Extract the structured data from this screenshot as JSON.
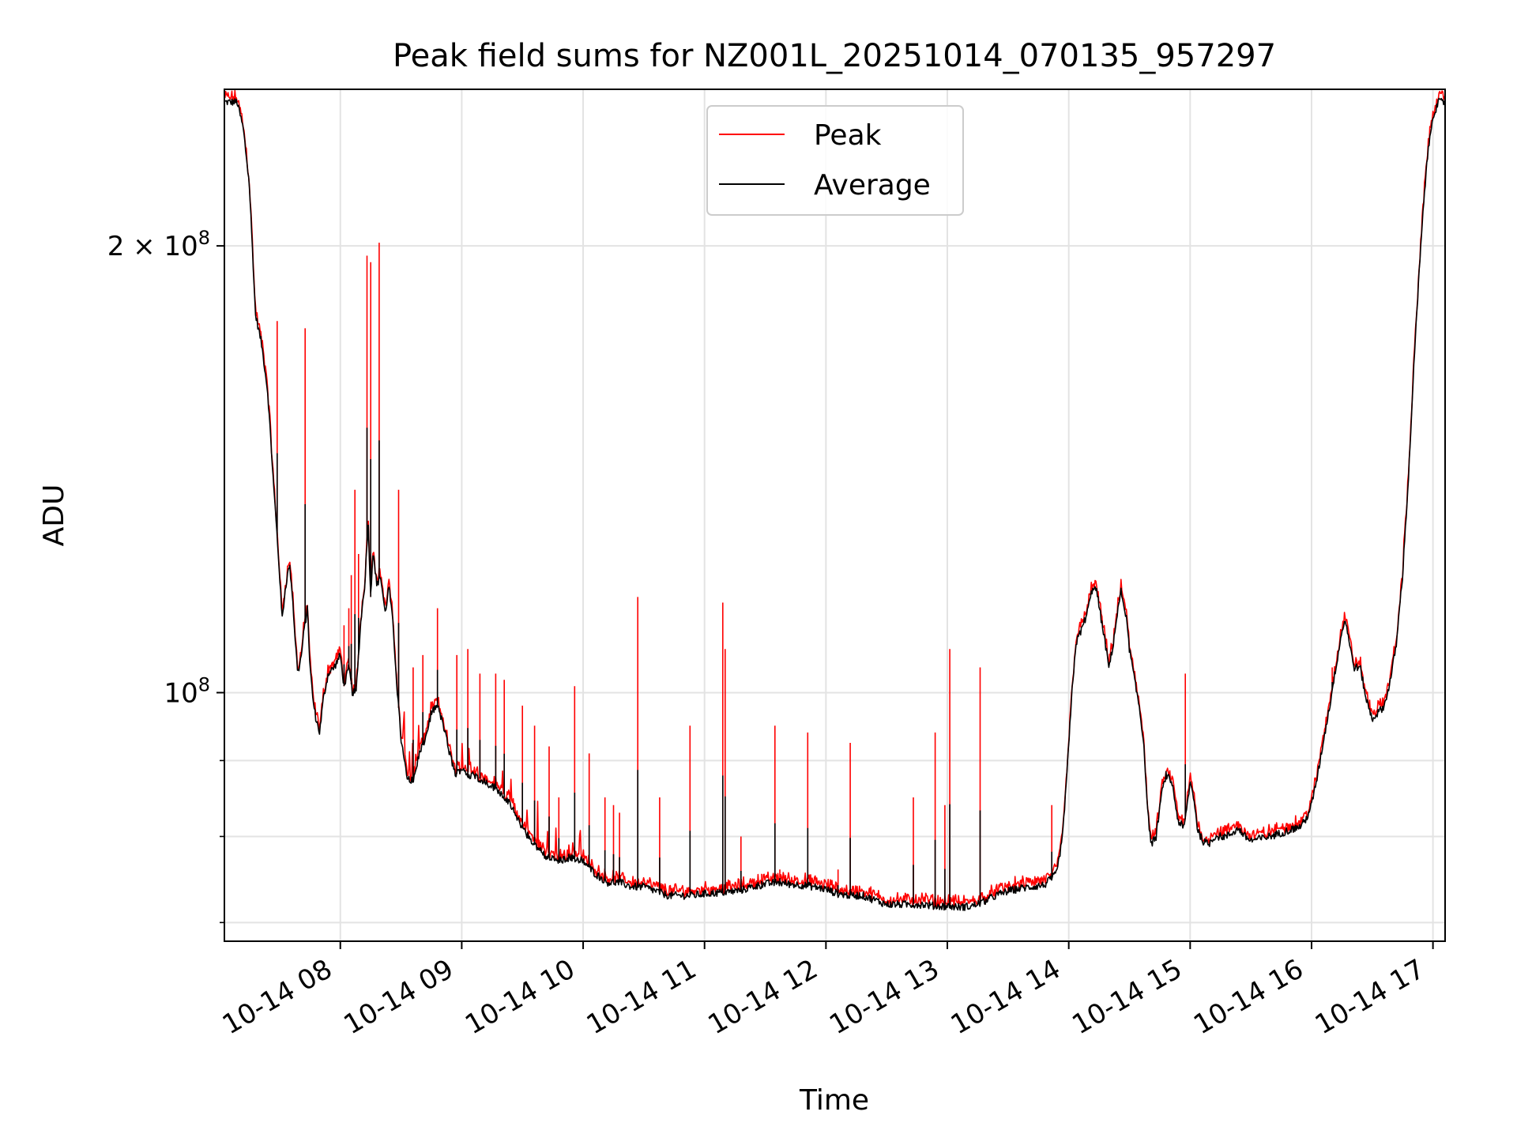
{
  "chart_data": {
    "type": "line",
    "title": "Peak field sums for NZ001L_20251014_070135_957297",
    "xlabel": "Time",
    "ylabel": "ADU",
    "xlim": [
      7.045,
      17.1
    ],
    "ylim": [
      68000000,
      255000000
    ],
    "yscale": "log",
    "grid": true,
    "legend_position": "top-center",
    "x_ticks": [
      {
        "value": 8,
        "label": "10-14 08"
      },
      {
        "value": 9,
        "label": "10-14 09"
      },
      {
        "value": 10,
        "label": "10-14 10"
      },
      {
        "value": 11,
        "label": "10-14 11"
      },
      {
        "value": 12,
        "label": "10-14 12"
      },
      {
        "value": 13,
        "label": "10-14 13"
      },
      {
        "value": 14,
        "label": "10-14 14"
      },
      {
        "value": 15,
        "label": "10-14 15"
      },
      {
        "value": 16,
        "label": "10-14 16"
      },
      {
        "value": 17,
        "label": "10-14 17"
      }
    ],
    "y_major_ticks": [
      {
        "value": 100000000,
        "mantissa": "",
        "base": "10",
        "exp": "8"
      },
      {
        "value": 200000000,
        "mantissa": "2 × ",
        "base": "10",
        "exp": "8"
      }
    ],
    "y_minor_ticks": [
      70000000,
      80000000,
      90000000,
      300000000
    ],
    "series": [
      {
        "name": "Average",
        "color": "#000000",
        "points": [
          [
            7.05,
            250
          ],
          [
            7.15,
            250
          ],
          [
            7.2,
            240
          ],
          [
            7.25,
            220
          ],
          [
            7.3,
            180
          ],
          [
            7.35,
            172
          ],
          [
            7.4,
            160
          ],
          [
            7.45,
            138
          ],
          [
            7.5,
            120
          ],
          [
            7.52,
            112
          ],
          [
            7.55,
            118
          ],
          [
            7.58,
            122
          ],
          [
            7.6,
            118
          ],
          [
            7.63,
            108
          ],
          [
            7.65,
            103
          ],
          [
            7.68,
            106
          ],
          [
            7.7,
            110
          ],
          [
            7.73,
            114
          ],
          [
            7.75,
            104
          ],
          [
            7.78,
            98
          ],
          [
            7.8,
            96
          ],
          [
            7.83,
            94
          ],
          [
            7.86,
            99
          ],
          [
            7.9,
            103
          ],
          [
            7.95,
            104
          ],
          [
            8.0,
            106
          ],
          [
            8.03,
            101
          ],
          [
            8.07,
            104
          ],
          [
            8.1,
            100
          ],
          [
            8.13,
            100
          ],
          [
            8.17,
            112
          ],
          [
            8.2,
            118
          ],
          [
            8.23,
            130
          ],
          [
            8.25,
            116
          ],
          [
            8.27,
            125
          ],
          [
            8.3,
            118
          ],
          [
            8.33,
            120
          ],
          [
            8.37,
            113
          ],
          [
            8.4,
            118
          ],
          [
            8.43,
            112
          ],
          [
            8.47,
            100
          ],
          [
            8.5,
            93
          ],
          [
            8.55,
            88
          ],
          [
            8.6,
            87
          ],
          [
            8.65,
            91
          ],
          [
            8.7,
            93
          ],
          [
            8.75,
            97
          ],
          [
            8.8,
            98
          ],
          [
            8.85,
            95
          ],
          [
            8.9,
            91
          ],
          [
            8.95,
            88
          ],
          [
            9.0,
            89
          ],
          [
            9.05,
            88
          ],
          [
            9.1,
            88
          ],
          [
            9.2,
            87
          ],
          [
            9.3,
            86
          ],
          [
            9.4,
            84
          ],
          [
            9.5,
            81
          ],
          [
            9.6,
            79
          ],
          [
            9.7,
            77.5
          ],
          [
            9.8,
            77
          ],
          [
            9.9,
            77.5
          ],
          [
            10.0,
            77
          ],
          [
            10.1,
            75.5
          ],
          [
            10.2,
            74.5
          ],
          [
            10.3,
            74.5
          ],
          [
            10.4,
            74
          ],
          [
            10.5,
            74
          ],
          [
            10.6,
            73.5
          ],
          [
            10.7,
            73
          ],
          [
            10.8,
            73
          ],
          [
            10.9,
            73
          ],
          [
            11.0,
            73.2
          ],
          [
            11.1,
            73.3
          ],
          [
            11.2,
            73.4
          ],
          [
            11.3,
            73.6
          ],
          [
            11.4,
            74
          ],
          [
            11.5,
            74.3
          ],
          [
            11.6,
            74.5
          ],
          [
            11.7,
            74.3
          ],
          [
            11.8,
            74.2
          ],
          [
            11.9,
            74
          ],
          [
            12.0,
            73.7
          ],
          [
            12.1,
            73.2
          ],
          [
            12.2,
            73
          ],
          [
            12.3,
            73
          ],
          [
            12.4,
            72.5
          ],
          [
            12.5,
            72
          ],
          [
            12.6,
            72
          ],
          [
            12.7,
            72
          ],
          [
            12.8,
            72
          ],
          [
            12.9,
            71.8
          ],
          [
            13.0,
            71.8
          ],
          [
            13.1,
            71.7
          ],
          [
            13.2,
            71.8
          ],
          [
            13.3,
            72.3
          ],
          [
            13.4,
            73
          ],
          [
            13.5,
            73.5
          ],
          [
            13.6,
            73.8
          ],
          [
            13.7,
            74
          ],
          [
            13.8,
            74.2
          ],
          [
            13.9,
            75.5
          ],
          [
            13.95,
            80
          ],
          [
            14.0,
            92
          ],
          [
            14.03,
            101
          ],
          [
            14.06,
            108
          ],
          [
            14.1,
            110
          ],
          [
            14.15,
            113
          ],
          [
            14.2,
            118
          ],
          [
            14.23,
            117
          ],
          [
            14.26,
            113
          ],
          [
            14.3,
            108
          ],
          [
            14.33,
            104
          ],
          [
            14.36,
            107
          ],
          [
            14.4,
            113
          ],
          [
            14.43,
            117
          ],
          [
            14.47,
            113
          ],
          [
            14.5,
            107
          ],
          [
            14.55,
            101
          ],
          [
            14.58,
            98
          ],
          [
            14.62,
            92
          ],
          [
            14.65,
            83
          ],
          [
            14.68,
            79
          ],
          [
            14.72,
            80
          ],
          [
            14.76,
            85
          ],
          [
            14.8,
            88
          ],
          [
            14.85,
            87
          ],
          [
            14.9,
            82
          ],
          [
            14.95,
            81
          ],
          [
            15.0,
            87
          ],
          [
            15.03,
            85
          ],
          [
            15.06,
            81
          ],
          [
            15.1,
            79.5
          ],
          [
            15.15,
            79
          ],
          [
            15.2,
            80
          ],
          [
            15.25,
            80
          ],
          [
            15.3,
            80
          ],
          [
            15.35,
            80.5
          ],
          [
            15.4,
            81
          ],
          [
            15.45,
            80
          ],
          [
            15.5,
            79.5
          ],
          [
            15.6,
            79.8
          ],
          [
            15.7,
            80.2
          ],
          [
            15.8,
            80.7
          ],
          [
            15.9,
            81.2
          ],
          [
            15.95,
            82
          ],
          [
            16.0,
            84
          ],
          [
            16.05,
            88
          ],
          [
            16.1,
            93
          ],
          [
            16.15,
            98
          ],
          [
            16.2,
            104
          ],
          [
            16.25,
            110
          ],
          [
            16.28,
            112
          ],
          [
            16.32,
            107
          ],
          [
            16.35,
            104
          ],
          [
            16.4,
            104
          ],
          [
            16.45,
            99
          ],
          [
            16.5,
            96
          ],
          [
            16.55,
            97
          ],
          [
            16.6,
            98
          ],
          [
            16.65,
            102
          ],
          [
            16.7,
            108
          ],
          [
            16.75,
            120
          ],
          [
            16.8,
            140
          ],
          [
            16.85,
            170
          ],
          [
            16.9,
            200
          ],
          [
            16.95,
            228
          ],
          [
            17.0,
            245
          ],
          [
            17.05,
            250
          ],
          [
            17.1,
            250
          ]
        ]
      },
      {
        "name": "Peak",
        "color": "#ff0000",
        "spikes": [
          [
            7.48,
            178
          ],
          [
            7.71,
            176
          ],
          [
            7.92,
            103
          ],
          [
            8.03,
            111
          ],
          [
            8.07,
            114
          ],
          [
            8.09,
            120
          ],
          [
            8.12,
            137
          ],
          [
            8.15,
            124
          ],
          [
            8.22,
            197
          ],
          [
            8.25,
            195
          ],
          [
            8.32,
            201
          ],
          [
            8.48,
            137
          ],
          [
            8.6,
            104
          ],
          [
            8.68,
            106
          ],
          [
            8.8,
            114
          ],
          [
            8.96,
            106
          ],
          [
            9.05,
            107
          ],
          [
            9.15,
            103
          ],
          [
            9.28,
            103
          ],
          [
            9.35,
            102
          ],
          [
            9.5,
            98
          ],
          [
            9.6,
            95
          ],
          [
            9.72,
            92
          ],
          [
            9.8,
            85
          ],
          [
            9.93,
            101
          ],
          [
            10.05,
            91
          ],
          [
            10.18,
            85
          ],
          [
            10.25,
            84
          ],
          [
            10.3,
            83
          ],
          [
            10.45,
            116
          ],
          [
            10.63,
            85
          ],
          [
            10.88,
            95
          ],
          [
            11.15,
            115
          ],
          [
            11.17,
            107
          ],
          [
            11.3,
            80
          ],
          [
            11.47,
            75.5
          ],
          [
            11.58,
            95
          ],
          [
            11.62,
            76
          ],
          [
            11.85,
            94
          ],
          [
            12.1,
            76
          ],
          [
            12.2,
            92.5
          ],
          [
            12.72,
            85
          ],
          [
            12.9,
            94
          ],
          [
            12.98,
            84
          ],
          [
            13.02,
            107
          ],
          [
            13.27,
            104
          ],
          [
            13.86,
            84
          ],
          [
            14.96,
            103
          ],
          [
            16.17,
            104
          ]
        ]
      }
    ]
  }
}
